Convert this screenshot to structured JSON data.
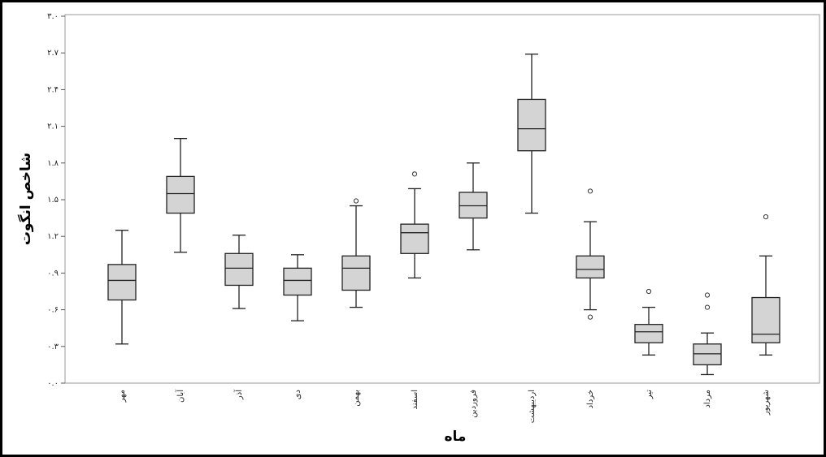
{
  "chart_data": {
    "type": "box",
    "y_label": "شاخص انگوت",
    "x_label": "ماه",
    "categories": [
      "مهر",
      "آبان",
      "آذر",
      "دی",
      "بهمن",
      "اسفند",
      "فروردین",
      "اردیبهشت",
      "خرداد",
      "تیر",
      "مرداد",
      "شهریور"
    ],
    "boxes": [
      {
        "low": 0.32,
        "q1": 0.68,
        "median": 0.84,
        "q3": 0.97,
        "high": 1.25,
        "outliers": []
      },
      {
        "low": 1.07,
        "q1": 1.39,
        "median": 1.55,
        "q3": 1.69,
        "high": 2.0,
        "outliers": []
      },
      {
        "low": 0.61,
        "q1": 0.8,
        "median": 0.94,
        "q3": 1.06,
        "high": 1.21,
        "outliers": []
      },
      {
        "low": 0.51,
        "q1": 0.72,
        "median": 0.84,
        "q3": 0.94,
        "high": 1.05,
        "outliers": []
      },
      {
        "low": 0.62,
        "q1": 0.76,
        "median": 0.94,
        "q3": 1.04,
        "high": 1.45,
        "outliers": [
          1.49
        ]
      },
      {
        "low": 0.86,
        "q1": 1.06,
        "median": 1.23,
        "q3": 1.3,
        "high": 1.59,
        "outliers": [
          1.71
        ]
      },
      {
        "low": 1.09,
        "q1": 1.35,
        "median": 1.45,
        "q3": 1.56,
        "high": 1.8,
        "outliers": []
      },
      {
        "low": 1.39,
        "q1": 1.9,
        "median": 2.08,
        "q3": 2.32,
        "high": 2.69,
        "outliers": []
      },
      {
        "low": 0.6,
        "q1": 0.86,
        "median": 0.93,
        "q3": 1.04,
        "high": 1.32,
        "outliers": [
          1.57,
          0.54
        ]
      },
      {
        "low": 0.23,
        "q1": 0.33,
        "median": 0.42,
        "q3": 0.48,
        "high": 0.62,
        "outliers": [
          0.75
        ]
      },
      {
        "low": 0.07,
        "q1": 0.15,
        "median": 0.24,
        "q3": 0.32,
        "high": 0.41,
        "outliers": [
          0.72,
          0.62
        ]
      },
      {
        "low": 0.23,
        "q1": 0.33,
        "median": 0.4,
        "q3": 0.7,
        "high": 1.04,
        "outliers": [
          1.36
        ]
      }
    ],
    "color": "#d4d4d4",
    "ylim": [
      0,
      3.0
    ],
    "yticks": [
      {
        "value": 0,
        "label": "۰.۰"
      },
      {
        "value": 0.3,
        "label": "۰.۳"
      },
      {
        "value": 0.6,
        "label": "۰.۶"
      },
      {
        "value": 0.9,
        "label": "۰.۹"
      },
      {
        "value": 1.2,
        "label": "۱.۲"
      },
      {
        "value": 1.5,
        "label": "۱.۵"
      },
      {
        "value": 1.8,
        "label": "۱.۸"
      },
      {
        "value": 2.1,
        "label": "۲.۱"
      },
      {
        "value": 2.4,
        "label": "۲.۴"
      },
      {
        "value": 2.7,
        "label": "۲.۷"
      },
      {
        "value": 3.0,
        "label": "۳.۰"
      }
    ]
  }
}
